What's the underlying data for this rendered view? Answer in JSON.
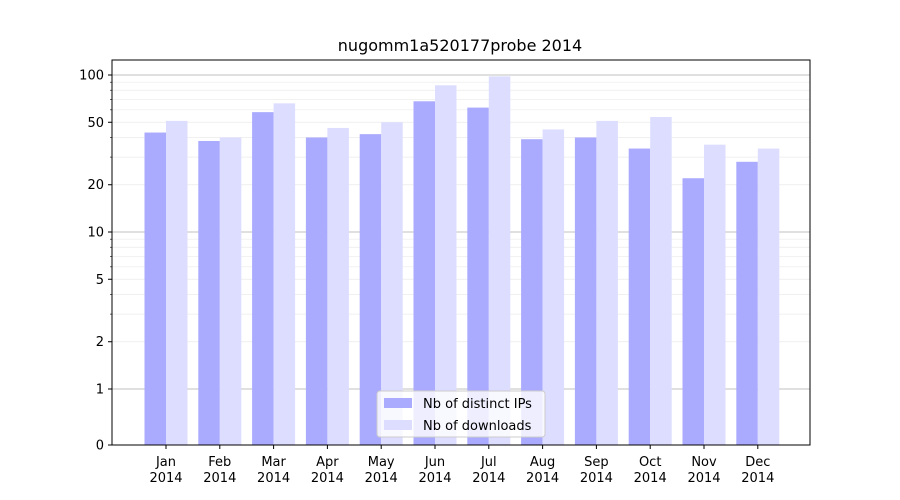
{
  "chart_data": {
    "type": "bar",
    "title": "nugomm1a520177probe 2014",
    "xlabel": "",
    "ylabel": "",
    "y_scale": "symlog",
    "ylim": [
      0,
      120
    ],
    "y_ticks": [
      0,
      1,
      2,
      5,
      10,
      20,
      50,
      100
    ],
    "grid": true,
    "legend_position": "bottom-center",
    "categories": [
      [
        "Jan",
        "2014"
      ],
      [
        "Feb",
        "2014"
      ],
      [
        "Mar",
        "2014"
      ],
      [
        "Apr",
        "2014"
      ],
      [
        "May",
        "2014"
      ],
      [
        "Jun",
        "2014"
      ],
      [
        "Jul",
        "2014"
      ],
      [
        "Aug",
        "2014"
      ],
      [
        "Sep",
        "2014"
      ],
      [
        "Oct",
        "2014"
      ],
      [
        "Nov",
        "2014"
      ],
      [
        "Dec",
        "2014"
      ]
    ],
    "series": [
      {
        "name": "Nb of distinct IPs",
        "color": "#aaaaff",
        "values": [
          43,
          38,
          58,
          40,
          42,
          68,
          62,
          39,
          40,
          34,
          22,
          28
        ]
      },
      {
        "name": "Nb of downloads",
        "color": "#ddddff",
        "values": [
          51,
          40,
          66,
          46,
          50,
          86,
          98,
          45,
          51,
          54,
          36,
          34
        ]
      }
    ]
  }
}
